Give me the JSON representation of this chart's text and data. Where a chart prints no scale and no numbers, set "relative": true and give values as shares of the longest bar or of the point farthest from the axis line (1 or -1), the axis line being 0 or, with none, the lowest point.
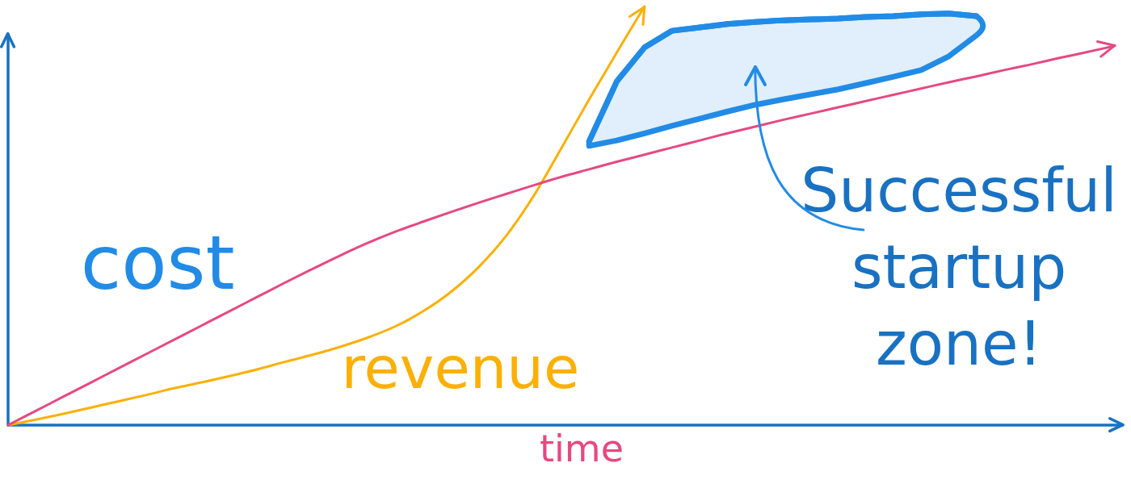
{
  "chart_data": {
    "type": "line",
    "relative": true,
    "xlabel": "time",
    "categories": [
      null,
      null,
      null,
      null,
      null,
      null,
      null,
      null,
      null,
      null,
      null,
      null,
      null,
      null,
      null,
      null,
      null,
      null,
      null,
      null,
      null,
      null,
      null,
      null,
      null,
      null,
      null,
      null,
      null,
      null,
      null,
      null,
      null,
      null,
      null,
      null,
      null,
      null,
      null,
      null,
      null
    ],
    "series": [
      {
        "name": "cost",
        "color": "#e64980",
        "values": [
          0,
          0.034,
          0.068,
          0.102,
          0.136,
          0.17,
          0.204,
          0.238,
          0.272,
          0.306,
          0.34,
          0.373,
          0.405,
          0.435,
          0.462,
          0.486,
          0.509,
          0.531,
          0.552,
          0.573,
          0.593,
          0.611,
          0.629,
          0.646,
          0.663,
          0.68,
          0.697,
          0.713,
          0.729,
          0.744,
          0.759,
          0.774,
          0.789,
          0.804,
          0.819,
          0.833,
          0.848,
          0.862,
          0.877,
          0.891,
          0.906
        ]
      },
      {
        "name": "revenue",
        "color": "#fab005",
        "values": [
          0,
          0.013,
          0.027,
          0.042,
          0.057,
          0.072,
          0.088,
          0.102,
          0.117,
          0.133,
          0.151,
          0.168,
          0.187,
          0.209,
          0.236,
          0.272,
          0.318,
          0.377,
          0.452,
          0.548,
          0.662,
          0.778,
          0.89,
          1,
          null,
          null,
          null,
          null,
          null,
          null,
          null,
          null,
          null,
          null,
          null,
          null,
          null,
          null,
          null,
          null,
          null
        ]
      },
      {
        "color": "#228be6",
        "values": [
          null,
          null,
          null,
          null,
          null,
          null,
          null,
          null,
          null,
          null,
          null,
          null,
          null,
          null,
          null,
          null,
          null,
          null,
          null,
          null,
          null,
          0.678,
          0.821,
          0.902,
          0.942,
          0.95,
          0.958,
          0.963,
          0.967,
          0.969,
          0.971,
          0.975,
          0.977,
          0.981,
          0.983,
          0.977,
          null,
          null,
          null,
          null,
          null
        ],
        "lower": [
          null,
          null,
          null,
          null,
          null,
          null,
          null,
          null,
          null,
          null,
          null,
          null,
          null,
          null,
          null,
          null,
          null,
          null,
          null,
          null,
          null,
          0.667,
          0.68,
          0.697,
          0.715,
          0.732,
          0.749,
          0.765,
          0.778,
          0.79,
          0.802,
          0.817,
          0.832,
          0.848,
          0.881,
          0.931,
          null,
          null,
          null,
          null,
          null
        ],
        "upper": [
          null,
          null,
          null,
          null,
          null,
          null,
          null,
          null,
          null,
          null,
          null,
          null,
          null,
          null,
          null,
          null,
          null,
          null,
          null,
          null,
          null,
          0.678,
          0.821,
          0.902,
          0.942,
          0.95,
          0.958,
          0.963,
          0.967,
          0.969,
          0.971,
          0.975,
          0.977,
          0.981,
          0.983,
          0.977,
          null,
          null,
          null,
          null,
          null
        ]
      }
    ],
    "annotations": [
      "Successful startup zone!"
    ]
  }
}
